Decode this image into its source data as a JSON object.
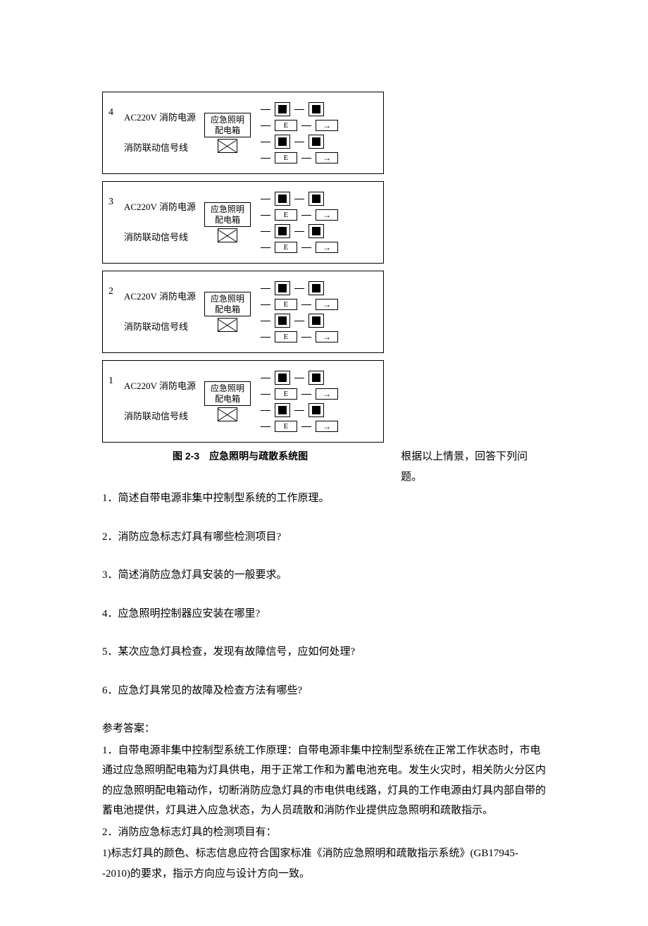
{
  "figure": {
    "caption": "图 2-3　应急照明与疏散系统图",
    "side_text": "根据以上情景，回答下列问题。",
    "floors": [
      {
        "num": "4",
        "line1": "AC220V 消防电源",
        "line2": "消防联动信号线",
        "box_l1": "应急照明",
        "box_l2": "配电箱",
        "E": "E",
        "arrow": "→"
      },
      {
        "num": "3",
        "line1": "AC220V 消防电源",
        "line2": "消防联动信号线",
        "box_l1": "应急照明",
        "box_l2": "配电箱",
        "E": "E",
        "arrow": "→"
      },
      {
        "num": "2",
        "line1": "AC220V 消防电源",
        "line2": "消防联动信号线",
        "box_l1": "应急照明",
        "box_l2": "配电箱",
        "E": "E",
        "arrow": "→"
      },
      {
        "num": "1",
        "line1": "AC220V 消防电源",
        "line2": "消防联动信号线",
        "box_l1": "应急照明",
        "box_l2": "配电箱",
        "E": "E",
        "arrow": "→"
      }
    ]
  },
  "questions": {
    "q1": "1．简述自带电源非集中控制型系统的工作原理。",
    "q2": "2．消防应急标志灯具有哪些检测项目?",
    "q3": "3．简述消防应急灯具安装的一般要求。",
    "q4": "4．应急照明控制器应安装在哪里?",
    "q5": "5．某次应急灯具检查，发现有故障信号，应如何处理?",
    "q6": "6．应急灯具常见的故障及检查方法有哪些?"
  },
  "answers": {
    "label": "参考答案：",
    "a1": "1．自带电源非集中控制型系统工作原理：自带电源非集中控制型系统在正常工作状态时，市电通过应急照明配电箱为灯具供电，用于正常工作和为蓄电池充电。发生火灾时，相关防火分区内的应急照明配电箱动作，切断消防应急灯具的市电供电线路，灯具的工作电源由灯具内部自带的蓄电池提供，灯具进入应急状态，为人员疏散和消防作业提供应急照明和疏散指示。",
    "a2_head": "2．消防应急标志灯具的检测项目有：",
    "a2_1": "1)标志灯具的颜色、标志信息应符合国家标准《消防应急照明和疏散指示系统》(GB17945--2010)的要求，指示方向应与设计方向一致。"
  }
}
